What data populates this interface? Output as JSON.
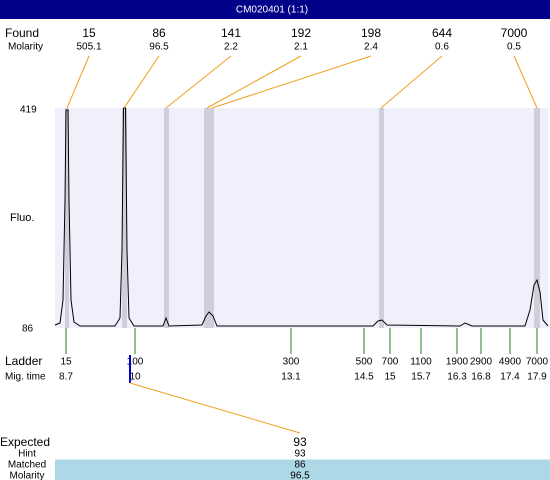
{
  "title": "CM020401 (1:1)",
  "found": {
    "label": "Found",
    "molarity_label": "Molarity",
    "peaks": [
      {
        "size": 15,
        "molarity": 505.1
      },
      {
        "size": 86,
        "molarity": 96.5
      },
      {
        "size": 141,
        "molarity": 2.2
      },
      {
        "size": 192,
        "molarity": 2.1
      },
      {
        "size": 198,
        "molarity": 2.4
      },
      {
        "size": 644,
        "molarity": 0.6
      },
      {
        "size": 7000,
        "molarity": 0.5
      }
    ]
  },
  "y_axis": {
    "label": "Fluo.",
    "max": 419,
    "min": 86
  },
  "ladder": {
    "label": "Ladder",
    "time_label": "Mig. time",
    "items": [
      {
        "size": 15,
        "time": 8.7
      },
      {
        "size": 100,
        "time": 10
      },
      {
        "size": 300,
        "time": 13.1
      },
      {
        "size": 500,
        "time": 14.5
      },
      {
        "size": 700,
        "time": 15
      },
      {
        "size": 1100,
        "time": 15.7
      },
      {
        "size": 1900,
        "time": 16.3
      },
      {
        "size": 2900,
        "time": 16.8
      },
      {
        "size": 4900,
        "time": 17.4
      },
      {
        "size": 7000,
        "time": 17.9
      }
    ]
  },
  "expected": {
    "label": "Expected",
    "value": 93,
    "rows": [
      {
        "label": "Hint",
        "value": 93
      },
      {
        "label": "Matched",
        "value": 86
      },
      {
        "label": "Molarity",
        "value": 96.5
      }
    ]
  }
}
